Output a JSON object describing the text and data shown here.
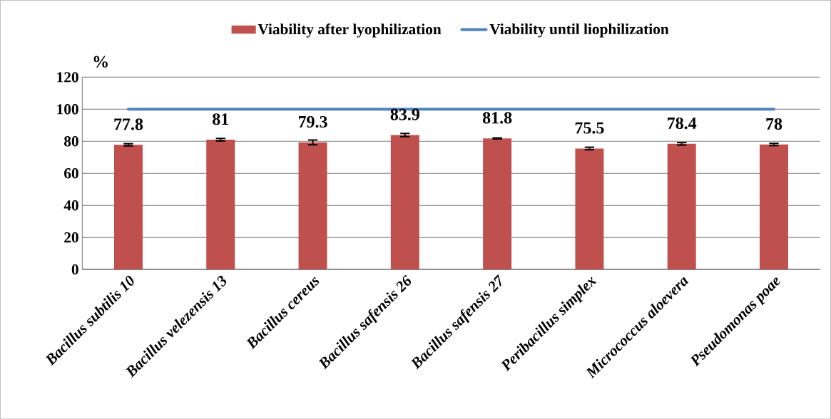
{
  "chart_data": {
    "type": "bar",
    "ylabel": "%",
    "categories": [
      "Bacillus subtilis 10",
      "Bacillus velezensis 13",
      "Bacillus cereus",
      "Bacillus  safensis 26",
      "Bacillus  safensis 27",
      "Peribacillus simplex",
      "Micrococcus aloevera",
      "Pseudomonas poae"
    ],
    "series": [
      {
        "name": "Viability after lyophilization",
        "type": "bar",
        "color": "#c0504d",
        "values": [
          77.8,
          81,
          79.3,
          83.9,
          81.8,
          75.5,
          78.4,
          78
        ],
        "errors": [
          0.7,
          0.8,
          1.5,
          1.0,
          0.3,
          0.8,
          0.8,
          0.7
        ],
        "data_labels": true
      },
      {
        "name": "Viability until liophilization",
        "type": "line",
        "color": "#4f81bd",
        "values": [
          100,
          100,
          100,
          100,
          100,
          100,
          100,
          100
        ],
        "marker": "none"
      }
    ],
    "ylim": [
      0,
      120
    ],
    "yticks": [
      0,
      20,
      40,
      60,
      80,
      100,
      120
    ],
    "grid": "y",
    "legend": "top"
  }
}
